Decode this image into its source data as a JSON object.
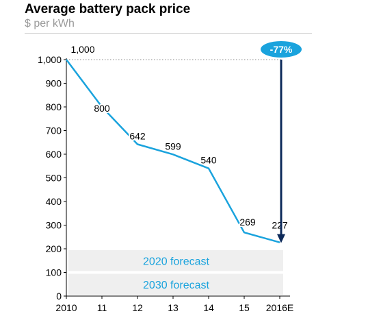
{
  "chart_data": {
    "type": "line",
    "title": "Average battery pack price",
    "subtitle": "$ per kWh",
    "categories": [
      "2010",
      "11",
      "12",
      "13",
      "14",
      "15",
      "2016E"
    ],
    "series": [
      {
        "values": [
          1000,
          800,
          642,
          599,
          540,
          269,
          227
        ]
      }
    ],
    "data_labels": [
      "1,000",
      "800",
      "642",
      "599",
      "540",
      "269",
      "227"
    ],
    "y_ticks": [
      0,
      100,
      200,
      300,
      400,
      500,
      600,
      700,
      800,
      900,
      1000
    ],
    "y_tick_labels": [
      "0",
      "100",
      "200",
      "300",
      "400",
      "500",
      "600",
      "700",
      "800",
      "900",
      "1,000"
    ],
    "ylim": [
      0,
      1000
    ],
    "grid": false,
    "forecast_bands": [
      {
        "label": "2020 forecast",
        "range": [
          100,
          200
        ]
      },
      {
        "label": "2030 forecast",
        "range": [
          0,
          100
        ]
      }
    ],
    "change_annotation": {
      "label": "-77%",
      "from": 1000,
      "to": 227
    },
    "colors": {
      "line": "#1aa3dd",
      "arrow": "#0d2a5a",
      "badge": "#1aa3dd",
      "band": "#efefef",
      "forecast_text": "#1aa3dd"
    }
  }
}
